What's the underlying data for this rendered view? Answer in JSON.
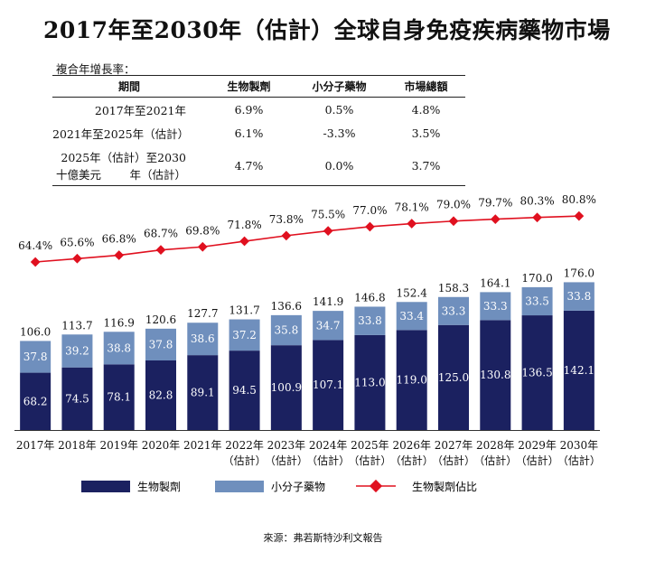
{
  "title": "2017年至2030年（估計）全球自身免疫疾病藥物市場",
  "cagr": {
    "caption": "複合年增長率：",
    "headers": [
      "期間",
      "生物製劑",
      "小分子藥物",
      "市場總額"
    ],
    "rows": [
      {
        "period": "2017年至2021年",
        "biologics": "6.9%",
        "small_molecule": "0.5%",
        "total": "4.8%"
      },
      {
        "period": "2021年至2025年（估計）",
        "biologics": "6.1%",
        "small_molecule": "-3.3%",
        "total": "3.5%"
      },
      {
        "period": "2025年（估計）至2030年（估計）",
        "biologics": "4.7%",
        "small_molecule": "0.0%",
        "total": "3.7%"
      }
    ]
  },
  "unit_label": "十億美元",
  "source": "來源：弗若斯特沙利文報告",
  "colors": {
    "biologics": "#1b2160",
    "small_molecule": "#6f8fbd",
    "share_line": "#e0101f",
    "axis": "#333333"
  },
  "chart_data": {
    "type": "bar",
    "stacked": true,
    "categories": [
      [
        "2017年"
      ],
      [
        "2018年"
      ],
      [
        "2019年"
      ],
      [
        "2020年"
      ],
      [
        "2021年"
      ],
      [
        "2022年",
        "（估計）"
      ],
      [
        "2023年",
        "（估計）"
      ],
      [
        "2024年",
        "（估計）"
      ],
      [
        "2025年",
        "（估計）"
      ],
      [
        "2026年",
        "（估計）"
      ],
      [
        "2027年",
        "（估計）"
      ],
      [
        "2028年",
        "（估計）"
      ],
      [
        "2029年",
        "（估計）"
      ],
      [
        "2030年",
        "（估計）"
      ]
    ],
    "series": [
      {
        "name": "生物製劑",
        "values": [
          "68.2",
          "74.5",
          "78.1",
          "82.8",
          "89.1",
          "94.5",
          "100.9",
          "107.1",
          "113.0",
          "119.0",
          "125.0",
          "130.8",
          "136.5",
          "142.1"
        ]
      },
      {
        "name": "小分子藥物",
        "values": [
          "37.8",
          "39.2",
          "38.8",
          "37.8",
          "38.6",
          "37.2",
          "35.8",
          "34.7",
          "33.8",
          "33.4",
          "33.3",
          "33.3",
          "33.5",
          "33.8"
        ]
      }
    ],
    "totals": [
      "106.0",
      "113.7",
      "116.9",
      "120.6",
      "127.7",
      "131.7",
      "136.6",
      "141.9",
      "146.8",
      "152.4",
      "158.3",
      "164.1",
      "170.0",
      "176.0"
    ],
    "line_series": {
      "name": "生物製劑佔比",
      "values": [
        "64.4%",
        "65.6%",
        "66.8%",
        "68.7%",
        "69.8%",
        "71.8%",
        "73.8%",
        "75.5%",
        "77.0%",
        "78.1%",
        "79.0%",
        "79.7%",
        "80.3%",
        "80.8%"
      ]
    },
    "ylim": [
      0,
      190
    ],
    "grid": false,
    "legend_position": "bottom"
  }
}
